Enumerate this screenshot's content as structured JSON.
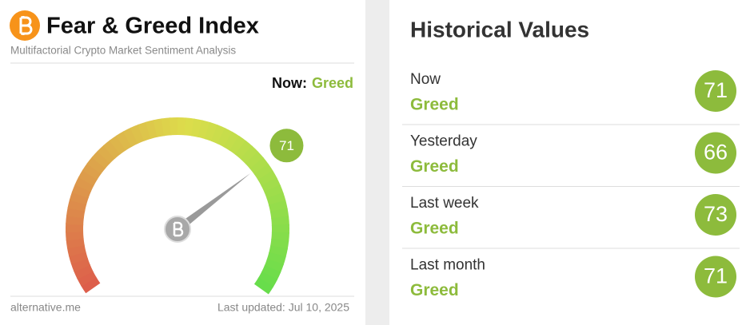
{
  "header": {
    "title": "Fear & Greed Index",
    "subtitle": "Multifactorial Crypto Market Sentiment Analysis"
  },
  "now": {
    "label": "Now:",
    "classification": "Greed"
  },
  "gauge": {
    "value": 71
  },
  "footer": {
    "source": "alternative.me",
    "updated": "Last updated: Jul 10, 2025"
  },
  "historical": {
    "title": "Historical Values",
    "rows": [
      {
        "label": "Now",
        "classification": "Greed",
        "value": 71
      },
      {
        "label": "Yesterday",
        "classification": "Greed",
        "value": 66
      },
      {
        "label": "Last week",
        "classification": "Greed",
        "value": 73
      },
      {
        "label": "Last month",
        "classification": "Greed",
        "value": 71
      }
    ]
  }
}
